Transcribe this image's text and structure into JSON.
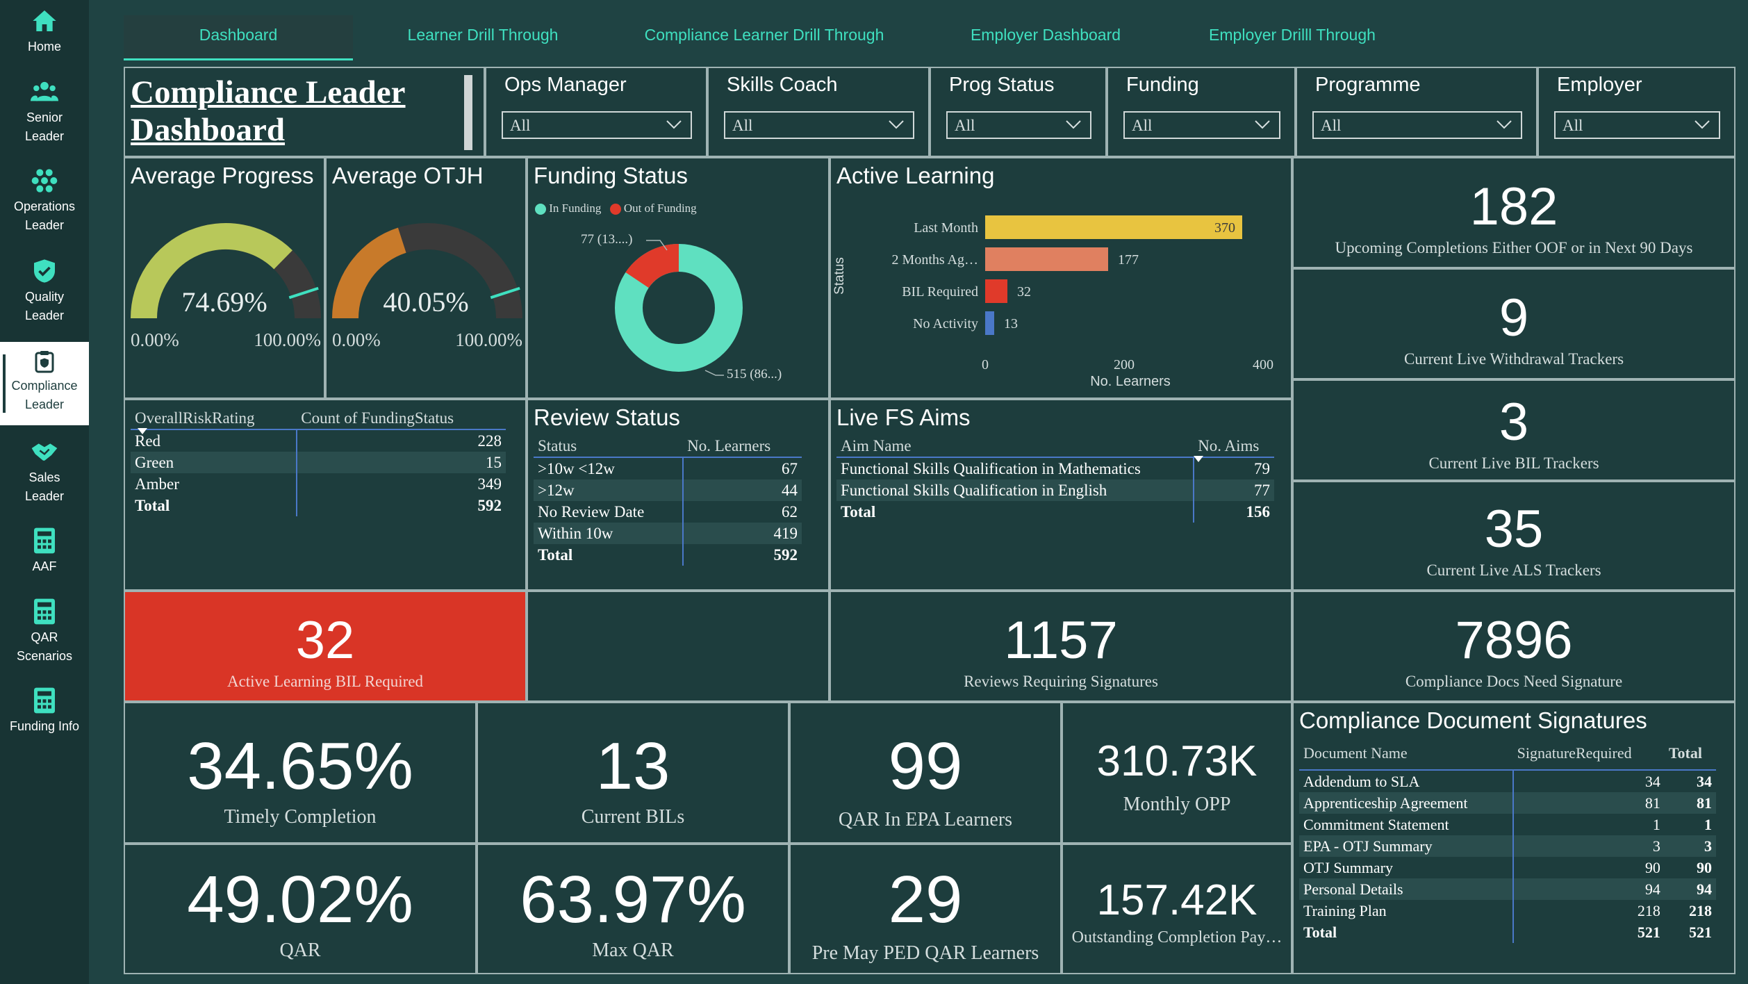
{
  "sidebar": {
    "items": [
      {
        "label_1": "Home",
        "label_2": "",
        "icon": "home-icon"
      },
      {
        "label_1": "Senior",
        "label_2": "Leader",
        "icon": "users-icon"
      },
      {
        "label_1": "Operations",
        "label_2": "Leader",
        "icon": "group-icon"
      },
      {
        "label_1": "Quality",
        "label_2": "Leader",
        "icon": "shield-check-icon"
      },
      {
        "label_1": "Compliance",
        "label_2": "Leader",
        "icon": "clipboard-icon"
      },
      {
        "label_1": "Sales",
        "label_2": "Leader",
        "icon": "handshake-icon"
      },
      {
        "label_1": "AAF",
        "label_2": "",
        "icon": "calculator-icon"
      },
      {
        "label_1": "QAR",
        "label_2": "Scenarios",
        "icon": "calculator-icon"
      },
      {
        "label_1": "Funding Info",
        "label_2": "",
        "icon": "calculator-icon"
      }
    ]
  },
  "tabs": [
    "Dashboard",
    "Learner Drill Through",
    "Compliance Learner Drill Through",
    "Employer Dashboard",
    "Employer Drilll Through"
  ],
  "page_title_1": "Compliance Leader ",
  "page_title_2": "Dashboard",
  "slicers": [
    {
      "label": "Ops Manager",
      "value": "All"
    },
    {
      "label": "Skills Coach",
      "value": "All"
    },
    {
      "label": "Prog Status",
      "value": "All"
    },
    {
      "label": "Funding",
      "value": "All"
    },
    {
      "label": "Programme",
      "value": "All"
    },
    {
      "label": "Employer",
      "value": "All"
    }
  ],
  "gauges": {
    "progress": {
      "title": "Average Progress",
      "value_text": "74.69%",
      "fraction": 0.7469,
      "min": "0.00%",
      "max": "100.00%",
      "color": "#b8c85a"
    },
    "otjh": {
      "title": "Average OTJH",
      "value_text": "40.05%",
      "fraction": 0.4005,
      "min": "0.00%",
      "max": "100.00%",
      "color": "#c87a2a"
    }
  },
  "funding_status": {
    "title": "Funding Status",
    "legend": [
      {
        "label": "In Funding",
        "color": "#5fe0c0"
      },
      {
        "label": "Out of Funding",
        "color": "#e03a2a"
      }
    ],
    "out_label": "77 (13....)",
    "in_label": "515 (86...)"
  },
  "chart_data": {
    "type": "bar",
    "title": "Active Learning",
    "categories": [
      "Last Month",
      "2 Months Ag…",
      "BIL Required",
      "No Activity"
    ],
    "values": [
      370,
      177,
      32,
      13
    ],
    "colors": [
      "#e8c440",
      "#e08060",
      "#e03a2a",
      "#4a78c8"
    ],
    "xlabel": "No. Learners",
    "ylabel": "Status",
    "xlim": [
      0,
      400
    ],
    "ticks": [
      "0",
      "200",
      "400"
    ]
  },
  "risk_table": {
    "headers": [
      "OverallRiskRating",
      "Count of FundingStatus"
    ],
    "rows": [
      [
        "Red",
        "228"
      ],
      [
        "Green",
        "15"
      ],
      [
        "Amber",
        "349"
      ]
    ],
    "total": [
      "Total",
      "592"
    ]
  },
  "review_status": {
    "title": "Review Status",
    "headers": [
      "Status",
      "No. Learners"
    ],
    "rows": [
      [
        ">10w <12w",
        "67"
      ],
      [
        ">12w",
        "44"
      ],
      [
        "No Review Date",
        "62"
      ],
      [
        "Within 10w",
        "419"
      ]
    ],
    "total": [
      "Total",
      "592"
    ]
  },
  "live_fs": {
    "title": "Live FS Aims",
    "headers": [
      "Aim Name",
      "No. Aims"
    ],
    "rows": [
      [
        "Functional Skills Qualification in Mathematics",
        "79"
      ],
      [
        "Functional Skills Qualification in English",
        "77"
      ]
    ],
    "total": [
      "Total",
      "156"
    ]
  },
  "kpis": {
    "upcoming": {
      "value": "182",
      "label": "Upcoming Completions Either OOF or in Next 90 Days"
    },
    "withdrawal": {
      "value": "9",
      "label": "Current Live Withdrawal Trackers"
    },
    "bil_trackers": {
      "value": "3",
      "label": "Current Live BIL Trackers"
    },
    "als": {
      "value": "35",
      "label": "Current Live ALS Trackers"
    },
    "bil_required": {
      "value": "32",
      "label": "Active Learning BIL Required",
      "color": "#d93526"
    },
    "reviews": {
      "value": "1157",
      "label": "Reviews Requiring Signatures"
    },
    "docs": {
      "value": "7896",
      "label": "Compliance Docs Need Signature"
    },
    "timely": {
      "value": "34.65%",
      "label": "Timely Completion"
    },
    "bils": {
      "value": "13",
      "label": "Current BILs"
    },
    "qar_epa": {
      "value": "99",
      "label": "QAR In EPA Learners"
    },
    "opp": {
      "value": "310.73K",
      "label": "Monthly OPP"
    },
    "qar": {
      "value": "49.02%",
      "label": "QAR"
    },
    "max_qar": {
      "value": "63.97%",
      "label": "Max QAR"
    },
    "pre_may": {
      "value": "29",
      "label": "Pre May PED QAR Learners"
    },
    "outstanding": {
      "value": "157.42K",
      "label": "Outstanding Completion Pay…"
    }
  },
  "doc_signatures": {
    "title": "Compliance Document Signatures",
    "headers": [
      "Document Name",
      "SignatureRequired",
      "Total"
    ],
    "rows": [
      [
        "Addendum to SLA",
        "34",
        "34"
      ],
      [
        "Apprenticeship Agreement",
        "81",
        "81"
      ],
      [
        "Commitment Statement",
        "1",
        "1"
      ],
      [
        "EPA - OTJ Summary",
        "3",
        "3"
      ],
      [
        "OTJ Summary",
        "90",
        "90"
      ],
      [
        "Personal Details",
        "94",
        "94"
      ],
      [
        "Training Plan",
        "218",
        "218"
      ]
    ],
    "total": [
      "Total",
      "521",
      "521"
    ]
  }
}
